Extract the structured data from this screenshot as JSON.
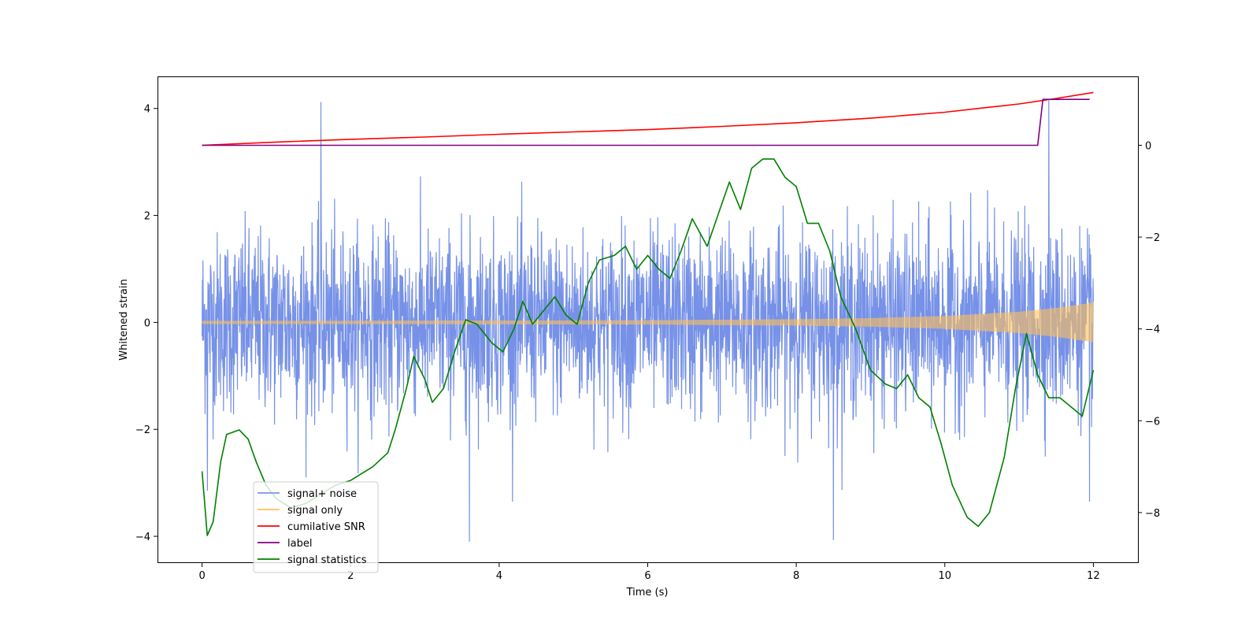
{
  "chart_data": {
    "type": "line",
    "xlabel": "Time (s)",
    "ylabel": "Whitened strain",
    "y2label": "",
    "xlim": [
      -0.6,
      12.6
    ],
    "ylim": [
      -4.5,
      4.6
    ],
    "y2lim": [
      -9.1,
      1.5
    ],
    "xticks": [
      0,
      2,
      4,
      6,
      8,
      10,
      12
    ],
    "yticks": [
      -4,
      -2,
      0,
      2,
      4
    ],
    "y2ticks": [
      -8,
      -6,
      -4,
      -2,
      0
    ],
    "legend": {
      "location": "lower-left",
      "entries": [
        {
          "label": "signal+ noise",
          "color": "#7b95e8"
        },
        {
          "label": "signal only",
          "color": "#ffbf5a"
        },
        {
          "label": "cumilative SNR",
          "color": "#ff0000"
        },
        {
          "label": "label",
          "color": "#800080"
        },
        {
          "label": "signal statistics",
          "color": "#008000"
        }
      ]
    },
    "series": [
      {
        "name": "signal+ noise",
        "axis": "left",
        "color": "#6f8be6",
        "style": "noise",
        "x_range": [
          0,
          12
        ],
        "typical_abs": 2.0,
        "max_abs": 4.15,
        "min": -4.1,
        "peaks": [
          [
            1.6,
            4.12
          ],
          [
            3.6,
            -4.1
          ],
          [
            8.5,
            -4.07
          ],
          [
            11.4,
            4.15
          ],
          [
            11.95,
            -3.35
          ],
          [
            0.07,
            -3.15
          ]
        ]
      },
      {
        "name": "signal only",
        "axis": "left",
        "color": "#ffbf5a",
        "style": "chirp",
        "x_range": [
          0,
          12
        ],
        "envelope": {
          "x": [
            0,
            2,
            4,
            6,
            7,
            8,
            9,
            10,
            11,
            11.5,
            12
          ],
          "amplitude": [
            0.03,
            0.03,
            0.035,
            0.04,
            0.05,
            0.06,
            0.08,
            0.12,
            0.2,
            0.27,
            0.37
          ]
        }
      },
      {
        "name": "cumilative SNR",
        "axis": "right",
        "color": "#ff0000",
        "x": [
          0,
          1,
          2,
          3,
          4,
          5,
          6,
          7,
          8,
          9,
          10,
          10.5,
          11,
          11.5,
          12
        ],
        "values": [
          0.0,
          0.07,
          0.13,
          0.18,
          0.24,
          0.29,
          0.34,
          0.41,
          0.49,
          0.59,
          0.72,
          0.81,
          0.9,
          1.02,
          1.15
        ]
      },
      {
        "name": "label",
        "axis": "right",
        "color": "#800080",
        "x": [
          0,
          11.25,
          11.32,
          11.95
        ],
        "values": [
          0,
          0,
          1.0,
          1.0
        ]
      },
      {
        "name": "signal statistics",
        "axis": "right",
        "color": "#008000",
        "x": [
          0.0,
          0.07,
          0.15,
          0.25,
          0.33,
          0.5,
          0.62,
          0.73,
          0.86,
          1.0,
          1.2,
          1.4,
          1.6,
          1.8,
          2.0,
          2.1,
          2.3,
          2.5,
          2.6,
          2.75,
          2.85,
          3.0,
          3.1,
          3.25,
          3.4,
          3.55,
          3.7,
          3.9,
          4.05,
          4.2,
          4.32,
          4.45,
          4.6,
          4.75,
          4.9,
          5.05,
          5.2,
          5.35,
          5.55,
          5.7,
          5.85,
          6.0,
          6.15,
          6.3,
          6.45,
          6.6,
          6.8,
          6.95,
          7.1,
          7.25,
          7.4,
          7.55,
          7.7,
          7.85,
          8.0,
          8.15,
          8.3,
          8.45,
          8.6,
          8.8,
          9.0,
          9.2,
          9.35,
          9.5,
          9.65,
          9.8,
          9.95,
          10.1,
          10.3,
          10.45,
          10.6,
          10.8,
          10.95,
          11.1,
          11.25,
          11.4,
          11.55,
          11.7,
          11.85,
          12.0
        ],
        "values": [
          -7.1,
          -8.5,
          -8.2,
          -6.9,
          -6.3,
          -6.2,
          -6.4,
          -6.9,
          -7.4,
          -7.7,
          -7.9,
          -7.8,
          -7.6,
          -7.4,
          -7.3,
          -7.2,
          -7.0,
          -6.7,
          -6.2,
          -5.3,
          -4.6,
          -5.1,
          -5.6,
          -5.3,
          -4.5,
          -3.8,
          -3.9,
          -4.3,
          -4.5,
          -4.0,
          -3.4,
          -3.9,
          -3.6,
          -3.3,
          -3.7,
          -3.9,
          -3.0,
          -2.5,
          -2.4,
          -2.2,
          -2.7,
          -2.4,
          -2.7,
          -2.9,
          -2.3,
          -1.6,
          -2.2,
          -1.5,
          -0.8,
          -1.4,
          -0.5,
          -0.3,
          -0.3,
          -0.7,
          -0.9,
          -1.7,
          -1.7,
          -2.3,
          -3.3,
          -4.0,
          -4.9,
          -5.2,
          -5.3,
          -5.0,
          -5.5,
          -5.7,
          -6.5,
          -7.4,
          -8.1,
          -8.3,
          -8.0,
          -6.8,
          -5.3,
          -4.1,
          -5.0,
          -5.5,
          -5.5,
          -5.7,
          -5.9,
          -4.9
        ]
      }
    ]
  }
}
